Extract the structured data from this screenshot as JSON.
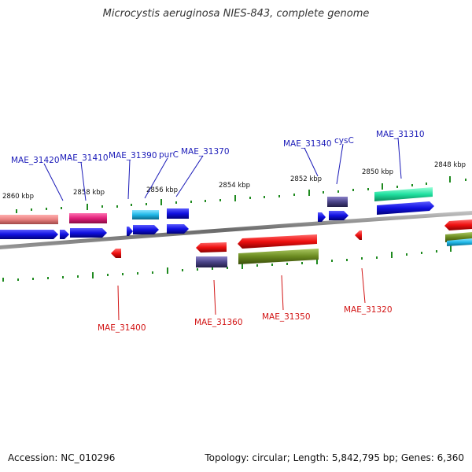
{
  "title": "Microcystis aeruginosa NIES-843, complete genome",
  "footer": {
    "accession": "Accession: NC_010296",
    "summary": "Topology: circular; Length: 5,842,795 bp; Genes: 6,360"
  },
  "scale_labels": [
    "2860 kbp",
    "2858 kbp",
    "2856 kbp",
    "2854 kbp",
    "2852 kbp",
    "2850 kbp",
    "2848 kbp"
  ],
  "gene_labels_top": [
    "MAE_31420",
    "MAE_31410",
    "MAE_31390",
    "purC",
    "MAE_31370",
    "MAE_31340",
    "cysC",
    "MAE_31310"
  ],
  "gene_labels_bottom": [
    "MAE_31400",
    "MAE_31360",
    "MAE_31350",
    "MAE_31320"
  ],
  "colors": {
    "backbone": "#7a7a7a",
    "tick": "#1f8a1f",
    "cds_forward": "#1010e0",
    "cds_reverse": "#e01010",
    "top_label": "#1a1ab8",
    "bottom_label": "#d21414",
    "pink": "#e0207a",
    "salmon": "#e88080",
    "cyan": "#20b8e8",
    "teal": "#20e0a0",
    "slate": "#4a4488",
    "olive": "#6a8a20"
  }
}
